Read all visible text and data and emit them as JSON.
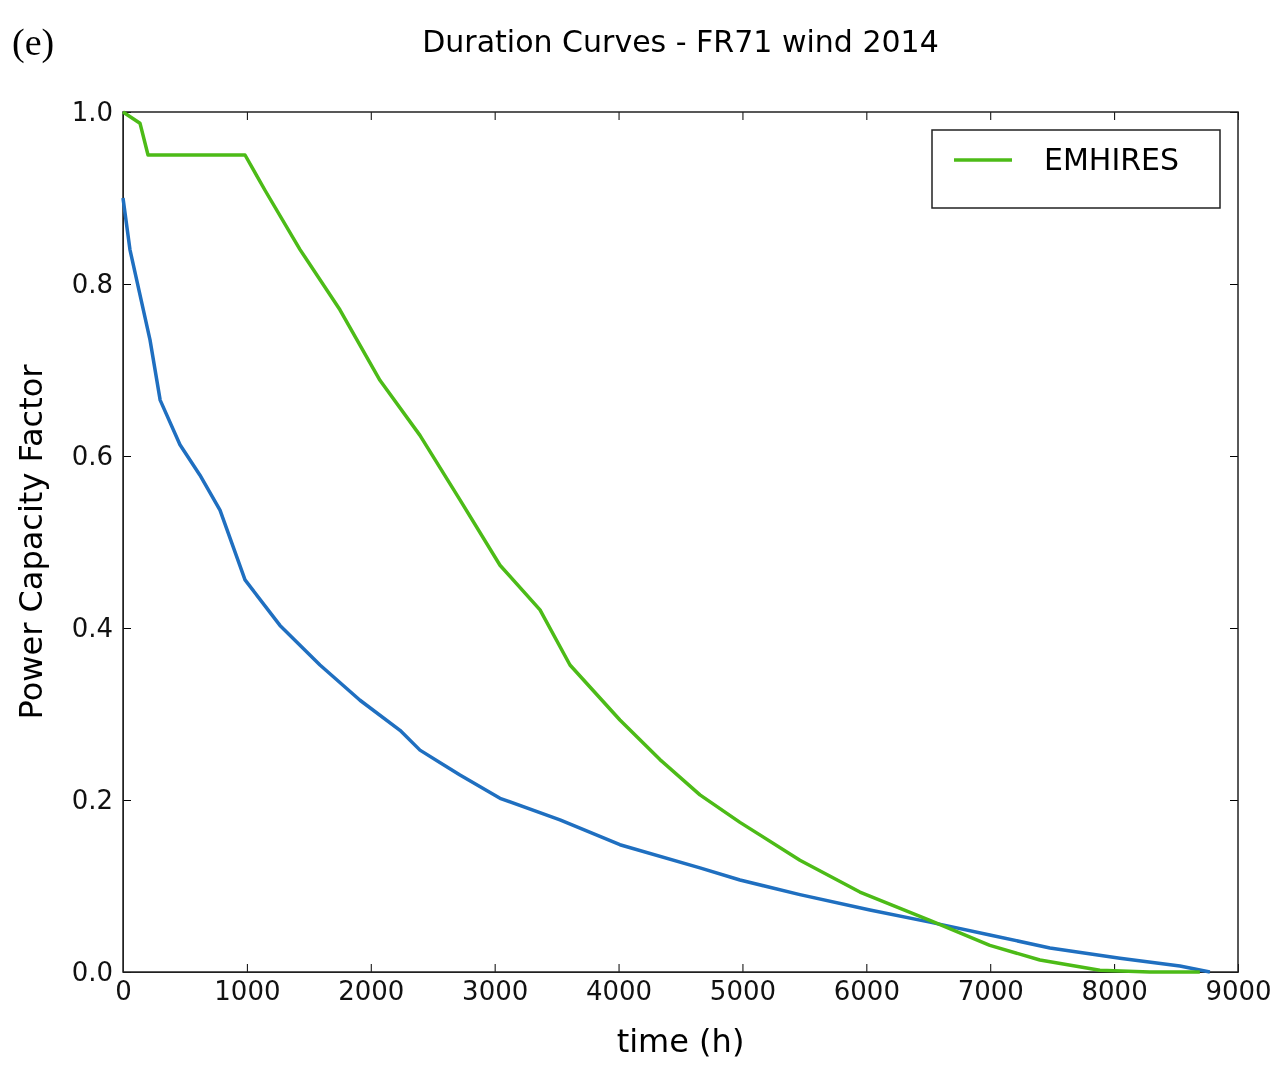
{
  "chart_data": {
    "type": "line",
    "title": "Duration Curves - FR71 wind 2014",
    "xlabel": "time (h)",
    "ylabel": "Power Capacity Factor",
    "annotations": [
      "(e)"
    ],
    "xlim": [
      0,
      9000
    ],
    "xticks": [
      0,
      1000,
      2000,
      3000,
      4000,
      5000,
      6000,
      7000,
      8000,
      9000
    ],
    "ylim": [
      0,
      1
    ],
    "yticks": [
      {
        "value": 0,
        "label": "0.0"
      },
      {
        "value": 0.2,
        "label": "0.2"
      },
      {
        "value": 0.4,
        "label": "0.4"
      },
      {
        "value": 0.6,
        "label": "0.6"
      },
      {
        "value": 0.8,
        "label": "0.8"
      },
      {
        "value": 1,
        "label": "1.0"
      }
    ],
    "grid": false,
    "legend": "top right",
    "marker": "none",
    "line_style": "solid",
    "series": [
      {
        "color": "#1f6fc0",
        "x": [
          0,
          56,
          218,
          300,
          460,
          620,
          783,
          985,
          1267,
          1590,
          1913,
          2236,
          2397,
          2720,
          3043,
          3527,
          4011,
          4657,
          4980,
          5464,
          6029,
          6513,
          6997,
          7482,
          8047,
          8531,
          8773
        ],
        "values": [
          0.9,
          0.84,
          0.735,
          0.665,
          0.613,
          0.578,
          0.537,
          0.456,
          0.403,
          0.357,
          0.316,
          0.281,
          0.258,
          0.229,
          0.202,
          0.177,
          0.148,
          0.121,
          0.107,
          0.09,
          0.072,
          0.058,
          0.043,
          0.028,
          0.016,
          0.007,
          0
        ]
      },
      {
        "name": "EMHIRES",
        "color": "#4cbb17",
        "x": [
          0,
          137,
          202,
          985,
          1146,
          1429,
          1751,
          2074,
          2397,
          2720,
          3043,
          3366,
          3608,
          4011,
          4334,
          4657,
          4980,
          5464,
          5948,
          6513,
          6997,
          7401,
          7885,
          8288,
          8692
        ],
        "values": [
          1,
          0.987,
          0.95,
          0.95,
          0.909,
          0.84,
          0.77,
          0.688,
          0.624,
          0.549,
          0.473,
          0.421,
          0.357,
          0.293,
          0.247,
          0.206,
          0.174,
          0.13,
          0.093,
          0.06,
          0.031,
          0.014,
          0.002,
          0,
          0
        ]
      }
    ]
  }
}
